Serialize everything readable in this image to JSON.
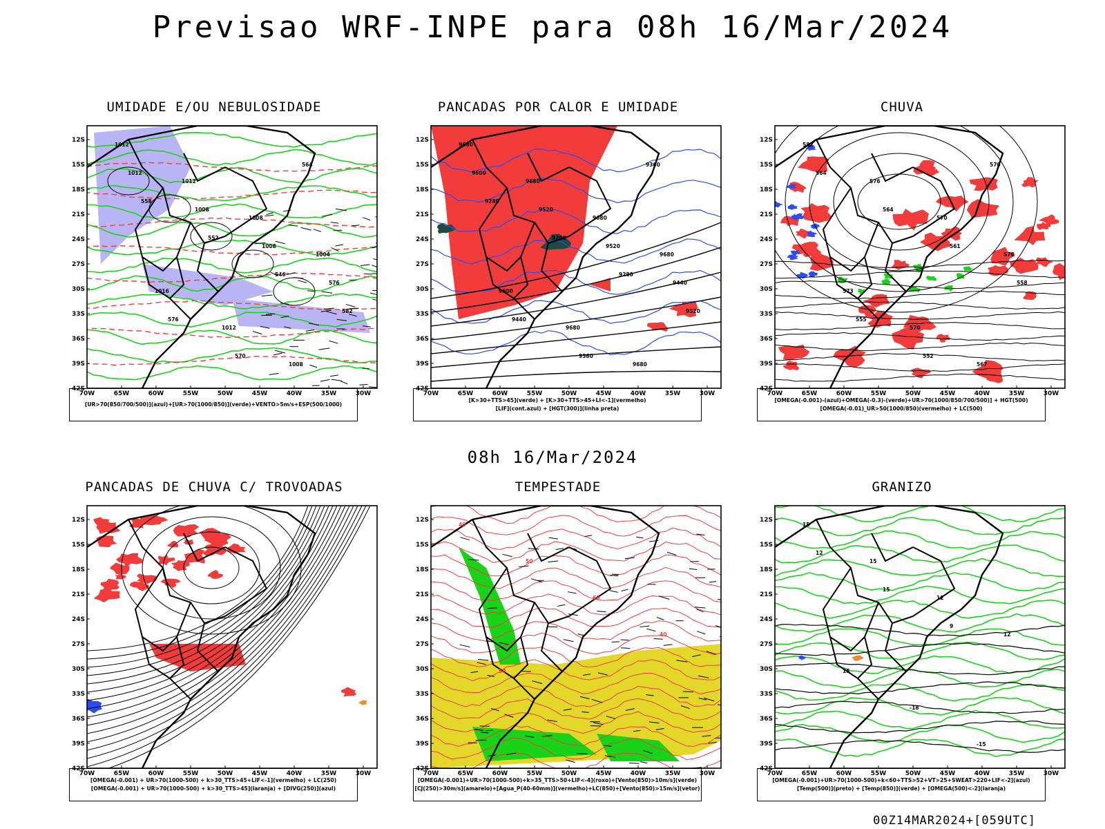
{
  "header": {
    "title": "Previsao WRF-INPE  para 08h 16/Mar/2024",
    "mid_title": "08h 16/Mar/2024",
    "footer_stamp": "00Z14MAR2024+[059UTC]"
  },
  "axes": {
    "lat_labels": [
      "12S",
      "15S",
      "18S",
      "21S",
      "24S",
      "27S",
      "30S",
      "33S",
      "36S",
      "39S",
      "42S"
    ],
    "lon_labels": [
      "70W",
      "65W",
      "60W",
      "55W",
      "50W",
      "45W",
      "40W",
      "35W",
      "30W"
    ]
  },
  "colors": {
    "red": "#f23c3c",
    "green": "#19d319",
    "blue": "#2b4cf0",
    "lavender": "#b9b4f4",
    "yellow": "#e3d72a",
    "dark_teal": "#1f4a44",
    "orange": "#f08a24",
    "purple": "#a12bd6"
  },
  "panels": [
    {
      "title": "UMIDADE E/OU NEBULOSIDADE",
      "legend": [
        "[UR>70(850/700/500)](azul)+[UR>70(1000/850)](verde)+VENTO>5m/s+ESP(500/1000)"
      ],
      "contour_labels": [
        "1012",
        "1012",
        "1008",
        "1004",
        "1016",
        "1012",
        "1008",
        "1012",
        "1008",
        "1008",
        "576",
        "576",
        "570",
        "564",
        "558",
        "552",
        "546",
        "582"
      ]
    },
    {
      "title": "PANCADAS POR CALOR E UMIDADE",
      "legend": [
        "[K>30+TTS>45](verde) + [K>30+TTS>45+LI<-1](vermelho)",
        "[LIF](cont.azul) + [HGT(300)](linha preta)"
      ],
      "contour_labels": [
        "9680",
        "9680",
        "9680",
        "9680",
        "9600",
        "9680",
        "9680",
        "9600",
        "9520",
        "9520",
        "9440",
        "9440",
        "9360",
        "9360",
        "9280",
        "9200",
        "9280",
        "9520"
      ]
    },
    {
      "title": "CHUVA",
      "legend": [
        "[OMEGA(-0.001)-(azul)+OMEGA(-0.3)-(verde)+UR>70(1000/850/700/500)] + HGT(500)",
        "[OMEGA(-0.01)_UR>50(1000/850)(vermelho) + LC(500)"
      ],
      "contour_labels": [
        "582",
        "576",
        "570",
        "576",
        "573",
        "570",
        "567",
        "564",
        "564",
        "561",
        "558",
        "555",
        "552",
        "570"
      ]
    },
    {
      "title": "PANCADAS DE CHUVA C/ TROVOADAS",
      "legend": [
        "[OMEGA(-0.001) + UR>70(1000-500) + k>30_TTS>45+LIF<-1](vermelho) + LC(250)",
        "[OMEGA(-0.001) + UR>70(1000-500) + k>30_TTS>45](laranja) + [DIVG(250)](azul)"
      ],
      "contour_labels": []
    },
    {
      "title": "TEMPESTADE",
      "legend": [
        "[OMEGA(-0.001)+UR>70(1000-500)+k>35_TTS>50+LIF<-4](roxo)+[Vento(850)>10m/s](verde)",
        "[CJ(250)>30m/s](amarelo)+[Agua_P(40-60mm)](vermelho)+LC(850)+[Vento(850)>15m/s](vetor)"
      ],
      "contour_labels": [
        "40",
        "50",
        "60",
        "40",
        "50"
      ]
    },
    {
      "title": "GRANIZO",
      "legend": [
        "[OMEGA(-0.001)+UR>70(1000-500)+k<60+TTS>52+VT>25+SWEAT>220+LIF<-2](azul)",
        "[Temp(500)](preto) + [Temp(850)](verde) + [OMEGA(500)<-2](laranja)"
      ],
      "contour_labels": [
        "15",
        "15",
        "12",
        "12",
        "15",
        "-18",
        "-15",
        "12",
        "15",
        "9"
      ]
    }
  ]
}
